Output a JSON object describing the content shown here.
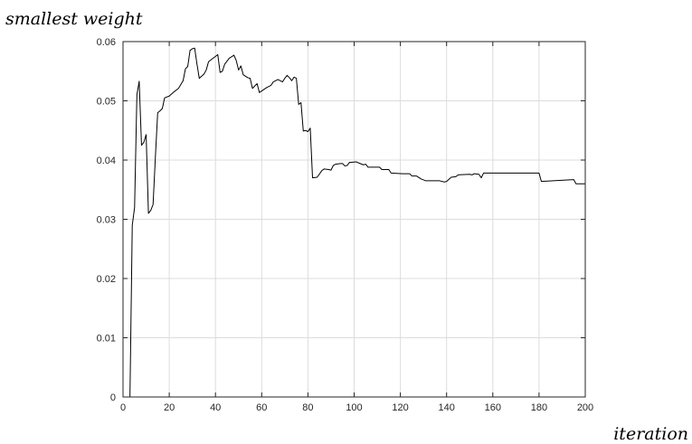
{
  "chart_data": {
    "type": "line",
    "title": "",
    "ylabel": "smallest weight",
    "xlabel": "iteration",
    "xlim": [
      0,
      200
    ],
    "ylim": [
      0,
      0.06
    ],
    "x_ticks": [
      "0",
      "20",
      "40",
      "60",
      "80",
      "100",
      "120",
      "140",
      "160",
      "180",
      "200"
    ],
    "y_ticks": [
      "0",
      "0.01",
      "0.02",
      "0.03",
      "0.04",
      "0.05",
      "0.06"
    ],
    "grid": true,
    "line_color": "#000000",
    "series": [
      {
        "name": "",
        "points": [
          [
            3,
            0
          ],
          [
            4,
            0.029
          ],
          [
            5,
            0.032
          ],
          [
            6,
            0.051
          ],
          [
            7,
            0.0533
          ],
          [
            8,
            0.0425
          ],
          [
            9,
            0.043
          ],
          [
            10,
            0.0443
          ],
          [
            11,
            0.031
          ],
          [
            12,
            0.0315
          ],
          [
            13,
            0.0325
          ],
          [
            14,
            0.0405
          ],
          [
            15,
            0.048
          ],
          [
            16,
            0.0483
          ],
          [
            17,
            0.0487
          ],
          [
            18,
            0.0505
          ],
          [
            20,
            0.0508
          ],
          [
            22,
            0.0515
          ],
          [
            24,
            0.0521
          ],
          [
            26,
            0.0534
          ],
          [
            27,
            0.0554
          ],
          [
            28,
            0.0558
          ],
          [
            29,
            0.0585
          ],
          [
            30,
            0.0588
          ],
          [
            31,
            0.0589
          ],
          [
            32,
            0.0562
          ],
          [
            33,
            0.0538
          ],
          [
            35,
            0.0545
          ],
          [
            36,
            0.0552
          ],
          [
            37,
            0.0566
          ],
          [
            40,
            0.0575
          ],
          [
            41,
            0.0578
          ],
          [
            42,
            0.0548
          ],
          [
            43,
            0.055
          ],
          [
            44,
            0.0562
          ],
          [
            46,
            0.0572
          ],
          [
            48,
            0.0577
          ],
          [
            49,
            0.0568
          ],
          [
            50,
            0.0552
          ],
          [
            51,
            0.0559
          ],
          [
            52,
            0.0544
          ],
          [
            54,
            0.0539
          ],
          [
            55,
            0.0538
          ],
          [
            56,
            0.0521
          ],
          [
            58,
            0.0529
          ],
          [
            59,
            0.0514
          ],
          [
            62,
            0.0522
          ],
          [
            64,
            0.0526
          ],
          [
            65,
            0.0532
          ],
          [
            67,
            0.0536
          ],
          [
            68,
            0.0534
          ],
          [
            69,
            0.0532
          ],
          [
            70,
            0.0538
          ],
          [
            71,
            0.0543
          ],
          [
            72,
            0.0539
          ],
          [
            73,
            0.0534
          ],
          [
            74,
            0.054
          ],
          [
            75,
            0.0538
          ],
          [
            76,
            0.0494
          ],
          [
            77,
            0.0497
          ],
          [
            78,
            0.0449
          ],
          [
            79,
            0.045
          ],
          [
            80,
            0.0448
          ],
          [
            81,
            0.0454
          ],
          [
            82,
            0.037
          ],
          [
            84,
            0.0371
          ],
          [
            86,
            0.0382
          ],
          [
            87,
            0.0385
          ],
          [
            89,
            0.0384
          ],
          [
            90,
            0.0383
          ],
          [
            91,
            0.0391
          ],
          [
            92,
            0.0393
          ],
          [
            94,
            0.0394
          ],
          [
            95,
            0.0394
          ],
          [
            96,
            0.039
          ],
          [
            97,
            0.0391
          ],
          [
            98,
            0.0396
          ],
          [
            101,
            0.0397
          ],
          [
            102,
            0.0395
          ],
          [
            104,
            0.0392
          ],
          [
            105,
            0.0393
          ],
          [
            106,
            0.0388
          ],
          [
            111,
            0.0388
          ],
          [
            112,
            0.0384
          ],
          [
            115,
            0.0384
          ],
          [
            116,
            0.0378
          ],
          [
            121,
            0.0377
          ],
          [
            124,
            0.0377
          ],
          [
            125,
            0.0373
          ],
          [
            127,
            0.0373
          ],
          [
            129,
            0.0368
          ],
          [
            131,
            0.0365
          ],
          [
            137,
            0.0365
          ],
          [
            139,
            0.0363
          ],
          [
            140,
            0.0364
          ],
          [
            142,
            0.0371
          ],
          [
            144,
            0.0372
          ],
          [
            145,
            0.0375
          ],
          [
            150,
            0.0376
          ],
          [
            151,
            0.0375
          ],
          [
            152,
            0.0377
          ],
          [
            154,
            0.0376
          ],
          [
            155,
            0.037
          ],
          [
            156,
            0.0378
          ],
          [
            158,
            0.0378
          ],
          [
            180,
            0.0378
          ],
          [
            181,
            0.0364
          ],
          [
            195,
            0.0367
          ],
          [
            196,
            0.036
          ],
          [
            200,
            0.036
          ]
        ]
      }
    ]
  }
}
